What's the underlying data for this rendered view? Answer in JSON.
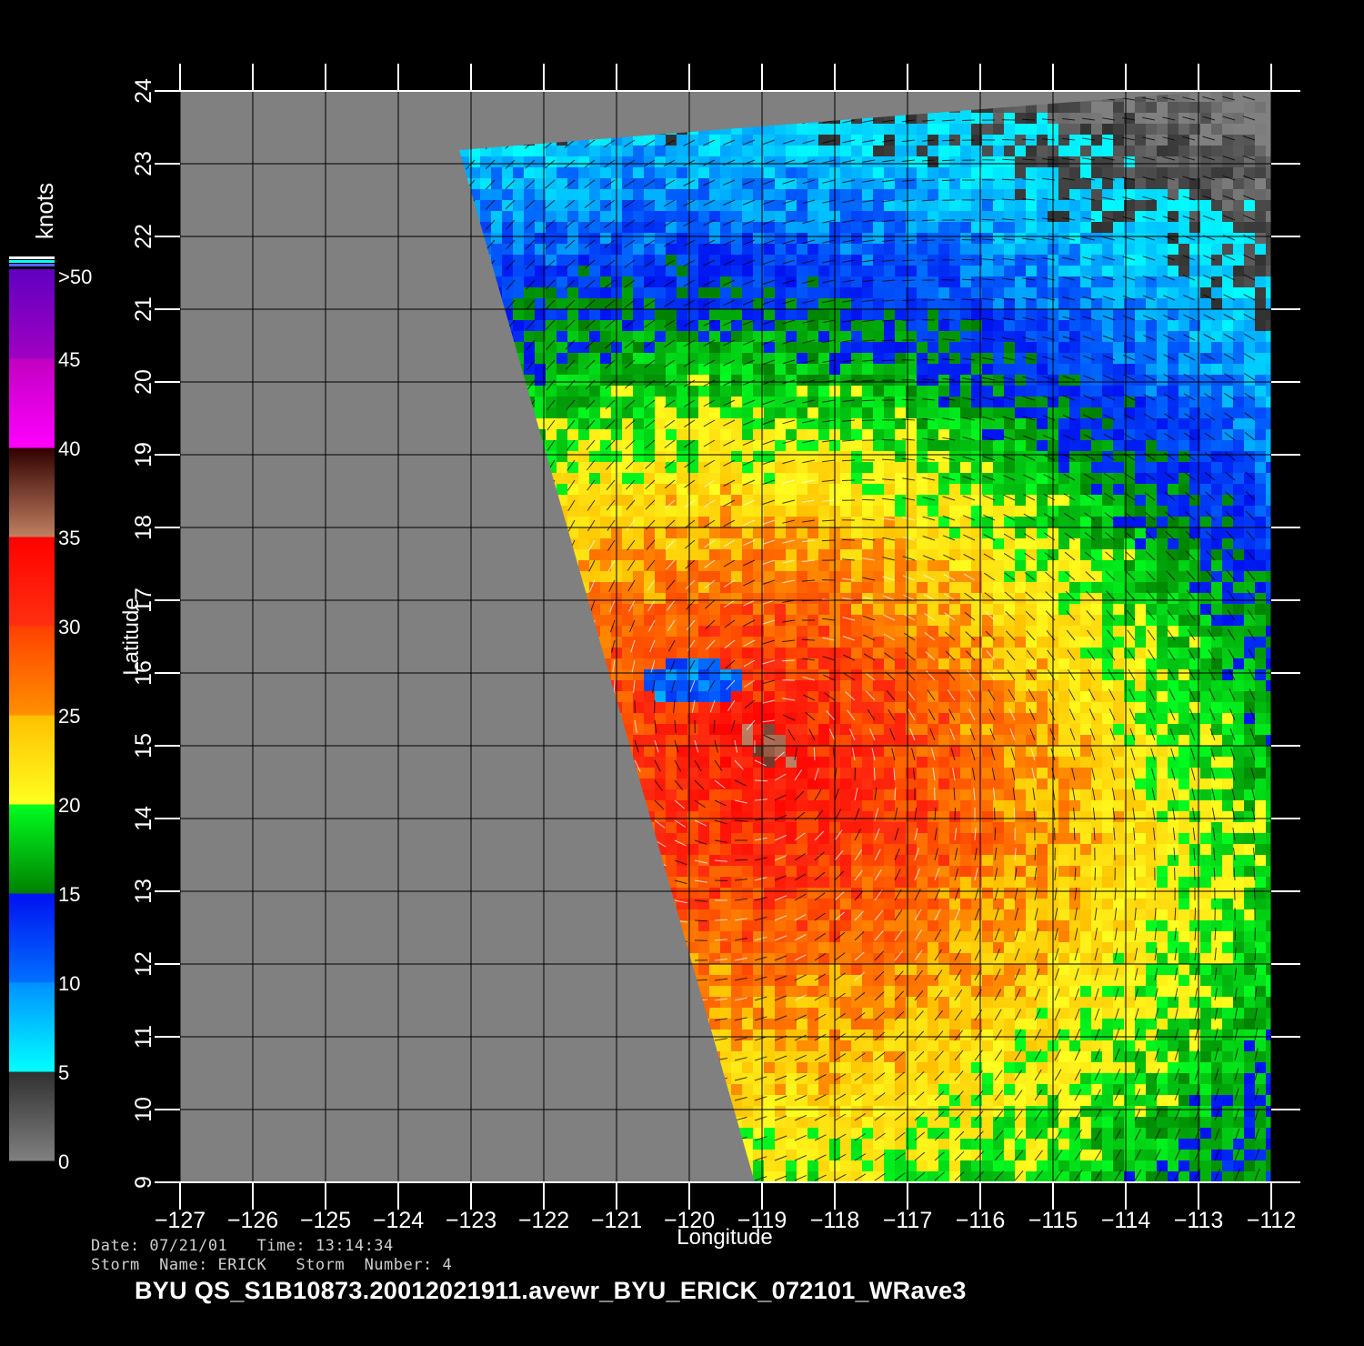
{
  "map": {
    "xlabel": "Longitude",
    "ylabel": "Latitude",
    "lon_range": [
      -127,
      -112
    ],
    "lat_range": [
      9,
      24
    ],
    "lon_ticks": [
      -127,
      -126,
      -125,
      -124,
      -123,
      -122,
      -121,
      -120,
      -119,
      -118,
      -117,
      -116,
      -115,
      -114,
      -113,
      -112
    ],
    "lat_ticks": [
      9,
      10,
      11,
      12,
      13,
      14,
      15,
      16,
      17,
      18,
      19,
      20,
      21,
      22,
      23,
      24
    ],
    "lon_tick_labels": [
      "−127",
      "−126",
      "−125",
      "−124",
      "−123",
      "−122",
      "−121",
      "−120",
      "−119",
      "−118",
      "−117",
      "−116",
      "−115",
      "−114",
      "−113",
      "−112"
    ],
    "lat_tick_labels": [
      "9",
      "10",
      "11",
      "12",
      "13",
      "14",
      "15",
      "16",
      "17",
      "18",
      "19",
      "20",
      "21",
      "22",
      "23",
      "24"
    ],
    "no_data_color": "#808080",
    "grid": true,
    "storm_center": {
      "lon": -118.9,
      "lat": 15.0
    }
  },
  "colorbar": {
    "unit": "knots",
    "labels": [
      "0",
      "5",
      "10",
      "15",
      "20",
      "25",
      "30",
      "35",
      "40",
      "45",
      ">50"
    ],
    "stops": [
      {
        "from": 0,
        "to": 5,
        "colors": [
          "#808080",
          "#303030"
        ]
      },
      {
        "from": 5,
        "to": 10,
        "colors": [
          "#00ffff",
          "#0090ff"
        ]
      },
      {
        "from": 10,
        "to": 15,
        "colors": [
          "#0070ff",
          "#0010f0"
        ]
      },
      {
        "from": 15,
        "to": 20,
        "colors": [
          "#008000",
          "#00ff20"
        ]
      },
      {
        "from": 20,
        "to": 25,
        "colors": [
          "#ffff20",
          "#ffc000"
        ]
      },
      {
        "from": 25,
        "to": 30,
        "colors": [
          "#ff9000",
          "#ff4000"
        ]
      },
      {
        "from": 30,
        "to": 35,
        "colors": [
          "#ff3010",
          "#ff0000"
        ]
      },
      {
        "from": 35,
        "to": 40,
        "colors": [
          "#c08060",
          "#300000"
        ]
      },
      {
        "from": 40,
        "to": 45,
        "colors": [
          "#ff00ff",
          "#c000c0"
        ]
      },
      {
        "from": 45,
        "to": 50,
        "colors": [
          "#a000c0",
          "#6000c0"
        ]
      }
    ]
  },
  "info": {
    "date_line": "Date: 07/21/01   Time: 13:14:34",
    "storm_line": "Storm  Name: ERICK   Storm  Number: 4"
  },
  "file_title": "BYU  QS_S1B10873.20012021911.avewr_BYU_ERICK_072101_WRave3"
}
